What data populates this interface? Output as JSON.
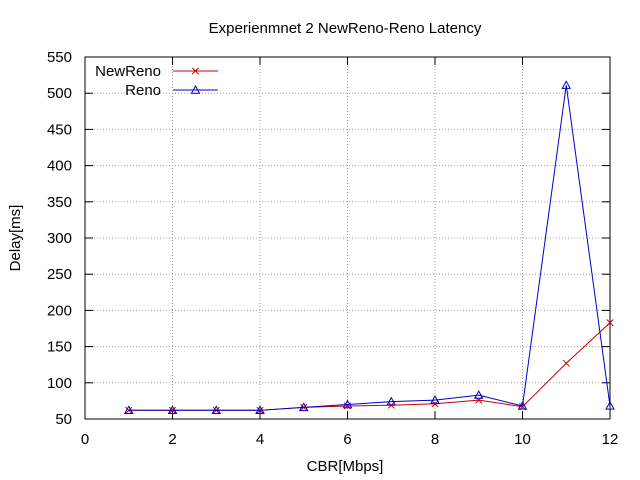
{
  "chart_data": {
    "type": "line",
    "title": "Experienmnet 2 NewReno-Reno Latency",
    "xlabel": "CBR[Mbps]",
    "ylabel": "Delay[ms]",
    "xlim": [
      0,
      12
    ],
    "ylim": [
      50,
      550
    ],
    "xticks": [
      0,
      2,
      4,
      6,
      8,
      10,
      12
    ],
    "yticks": [
      50,
      100,
      150,
      200,
      250,
      300,
      350,
      400,
      450,
      500,
      550
    ],
    "grid": true,
    "legend_position": "top-left",
    "x": [
      1,
      2,
      3,
      4,
      5,
      6,
      7,
      8,
      9,
      10,
      11,
      12
    ],
    "series": [
      {
        "name": "NewReno",
        "color": "#cc0000",
        "marker": "x-cross",
        "values": [
          62,
          62,
          62,
          62,
          66,
          68,
          69,
          71,
          76,
          67,
          127,
          183
        ]
      },
      {
        "name": "Reno",
        "color": "#0000cc",
        "marker": "triangle",
        "values": [
          62,
          62,
          62,
          62,
          66,
          70,
          74,
          76,
          83,
          68,
          511,
          68
        ]
      }
    ]
  }
}
